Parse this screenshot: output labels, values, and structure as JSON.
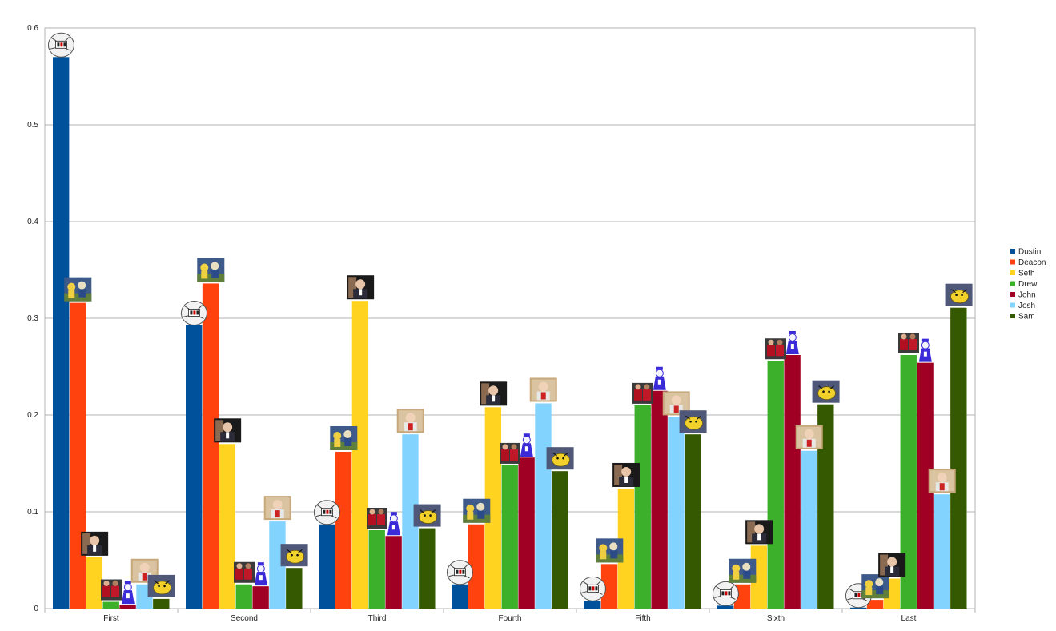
{
  "chart_data": {
    "type": "bar",
    "categories": [
      "First",
      "Second",
      "Third",
      "Fourth",
      "Fifth",
      "Sixth",
      "Last"
    ],
    "ylim": [
      0,
      0.6
    ],
    "yticks": [
      "0",
      "0.1",
      "0.2",
      "0.3",
      "0.4",
      "0.5",
      "0.6"
    ],
    "grid": true,
    "legend_position": "right",
    "series": [
      {
        "name": "Dustin",
        "color": "#00519b",
        "marker_icon": "hockey-mask-sketch-icon",
        "values": [
          0.57,
          0.293,
          0.087,
          0.025,
          0.008,
          0.003,
          0.001
        ]
      },
      {
        "name": "Deacon",
        "color": "#ff420e",
        "marker_icon": "football-team-photo-icon",
        "values": [
          0.316,
          0.336,
          0.162,
          0.087,
          0.046,
          0.025,
          0.009
        ]
      },
      {
        "name": "Seth",
        "color": "#ffd320",
        "marker_icon": "man-in-suit-photo-icon",
        "values": [
          0.053,
          0.17,
          0.318,
          0.208,
          0.124,
          0.065,
          0.031
        ]
      },
      {
        "name": "Drew",
        "color": "#3cb02b",
        "marker_icon": "player-celebration-photo-icon",
        "values": [
          0.007,
          0.025,
          0.081,
          0.148,
          0.21,
          0.256,
          0.262
        ]
      },
      {
        "name": "John",
        "color": "#a00023",
        "marker_icon": "cartoon-mascot-icon",
        "values": [
          0.004,
          0.023,
          0.075,
          0.156,
          0.225,
          0.262,
          0.254
        ]
      },
      {
        "name": "Josh",
        "color": "#82d3fd",
        "marker_icon": "coach-portrait-photo-icon",
        "values": [
          0.025,
          0.09,
          0.18,
          0.212,
          0.198,
          0.163,
          0.118
        ]
      },
      {
        "name": "Sam",
        "color": "#345900",
        "marker_icon": "yellow-blob-creature-icon",
        "values": [
          0.01,
          0.042,
          0.083,
          0.142,
          0.18,
          0.211,
          0.311
        ]
      }
    ]
  }
}
